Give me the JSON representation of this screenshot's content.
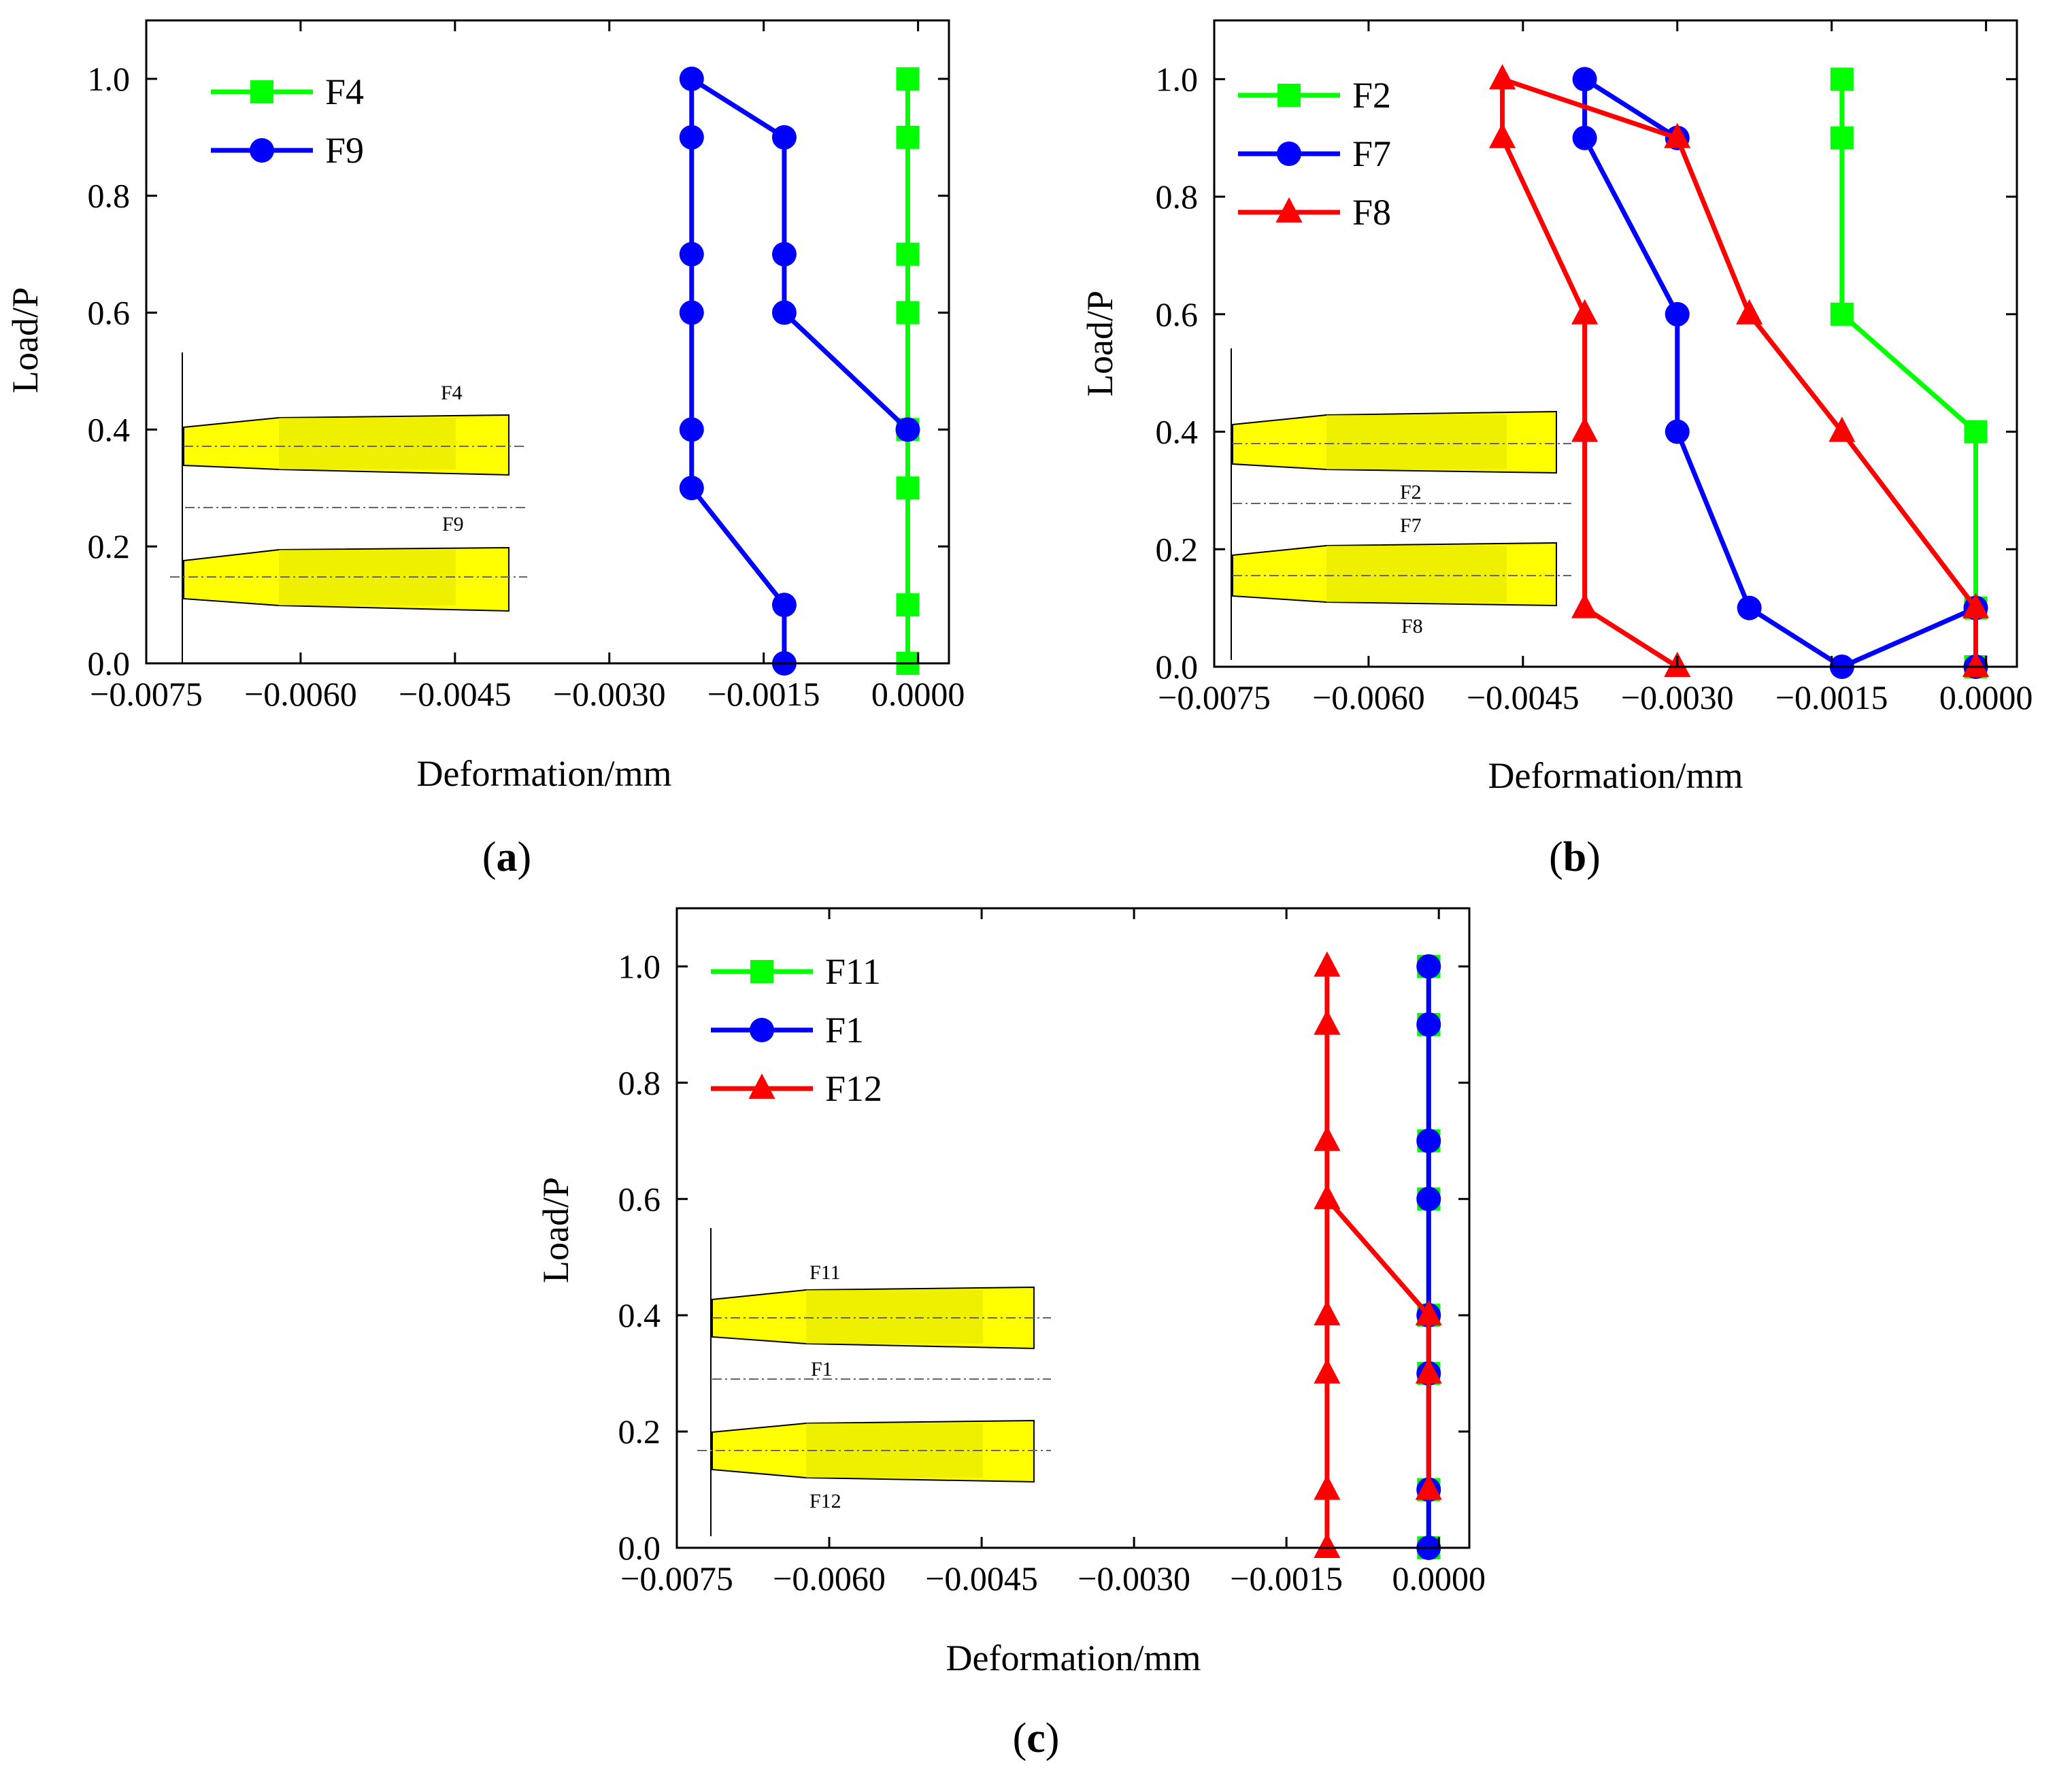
{
  "figure": {
    "background": "#ffffff"
  },
  "chart_data": [
    {
      "id": "a",
      "type": "line",
      "panel_label": "(a)",
      "panel_letter": "a",
      "xlabel": "Deformation/mm",
      "ylabel": "Load/P",
      "xlim": [
        -0.0075,
        0.0003
      ],
      "ylim": [
        0,
        1.1
      ],
      "xticks": [
        -0.0075,
        -0.006,
        -0.0045,
        -0.003,
        -0.0015,
        0.0
      ],
      "xtick_labels": [
        "−0.0075",
        "−0.0060",
        "−0.0045",
        "−0.0030",
        "−0.0015",
        "0.0000"
      ],
      "yticks": [
        0.0,
        0.2,
        0.4,
        0.6,
        0.8,
        1.0
      ],
      "ytick_labels": [
        "0.0",
        "0.2",
        "0.4",
        "0.6",
        "0.8",
        "1.0"
      ],
      "legend": "top-left",
      "series": [
        {
          "name": "F4",
          "color": "#00ff00",
          "marker": "square",
          "x": [
            -0.0001,
            -0.0001,
            -0.0001,
            -0.0001,
            -0.0001,
            -0.0001,
            -0.0001,
            -0.0001,
            -0.0001
          ],
          "y": [
            0.0,
            0.1,
            0.3,
            0.4,
            0.6,
            0.7,
            0.9,
            1.0,
            1.0
          ]
        },
        {
          "name": "F9",
          "color": "#0000ff",
          "marker": "circle",
          "x": [
            -0.0013,
            -0.0013,
            -0.0022,
            -0.0022,
            -0.0022,
            -0.0022,
            -0.0022,
            -0.0022,
            -0.0013,
            -0.0013,
            -0.0013,
            -0.0001
          ],
          "y": [
            0.0,
            0.1,
            0.3,
            0.4,
            0.6,
            0.7,
            0.9,
            1.0,
            0.9,
            0.7,
            0.6,
            0.4
          ]
        }
      ],
      "inset": {
        "labels": [
          "F4",
          "F9"
        ]
      }
    },
    {
      "id": "b",
      "type": "line",
      "panel_label": "(b)",
      "panel_letter": "b",
      "xlabel": "Deformation/mm",
      "ylabel": "Load/P",
      "xlim": [
        -0.0075,
        0.0003
      ],
      "ylim": [
        0,
        1.1
      ],
      "xticks": [
        -0.0075,
        -0.006,
        -0.0045,
        -0.003,
        -0.0015,
        0.0
      ],
      "xtick_labels": [
        "−0.0075",
        "−0.0060",
        "−0.0045",
        "−0.0030",
        "−0.0015",
        "0.0000"
      ],
      "yticks": [
        0.0,
        0.2,
        0.4,
        0.6,
        0.8,
        1.0
      ],
      "ytick_labels": [
        "0.0",
        "0.2",
        "0.4",
        "0.6",
        "0.8",
        "1.0"
      ],
      "legend": "top-left",
      "series": [
        {
          "name": "F2",
          "color": "#00ff00",
          "marker": "square",
          "x": [
            -0.0001,
            -0.0001,
            -0.0001,
            -0.0014,
            -0.0014,
            -0.0014
          ],
          "y": [
            0.0,
            0.1,
            0.4,
            0.6,
            0.9,
            1.0
          ]
        },
        {
          "name": "F7",
          "color": "#0000ff",
          "marker": "circle",
          "x": [
            -0.0001,
            -0.0001,
            -0.0014,
            -0.0023,
            -0.003,
            -0.003,
            -0.0039,
            -0.0039,
            -0.003
          ],
          "y": [
            0.0,
            0.1,
            0.0,
            0.1,
            0.4,
            0.6,
            0.9,
            1.0,
            0.9
          ]
        },
        {
          "name": "F8",
          "color": "#ff0000",
          "marker": "triangle",
          "x": [
            -0.003,
            -0.0039,
            -0.0039,
            -0.0039,
            -0.0047,
            -0.0047,
            -0.003,
            -0.0023,
            -0.0014,
            -0.0001,
            -0.0001
          ],
          "y": [
            0.0,
            0.1,
            0.4,
            0.6,
            0.9,
            1.0,
            0.9,
            0.6,
            0.4,
            0.1,
            0.0
          ]
        }
      ],
      "inset": {
        "labels": [
          "F2",
          "F7",
          "F8"
        ]
      }
    },
    {
      "id": "c",
      "type": "line",
      "panel_label": "(c)",
      "panel_letter": "c",
      "xlabel": "Deformation/mm",
      "ylabel": "Load/P",
      "xlim": [
        -0.0075,
        0.0003
      ],
      "ylim": [
        0,
        1.1
      ],
      "xticks": [
        -0.0075,
        -0.006,
        -0.0045,
        -0.003,
        -0.0015,
        0.0
      ],
      "xtick_labels": [
        "−0.0075",
        "−0.0060",
        "−0.0045",
        "−0.0030",
        "−0.0015",
        "0.0000"
      ],
      "yticks": [
        0.0,
        0.2,
        0.4,
        0.6,
        0.8,
        1.0
      ],
      "ytick_labels": [
        "0.0",
        "0.2",
        "0.4",
        "0.6",
        "0.8",
        "1.0"
      ],
      "legend": "top-left",
      "series": [
        {
          "name": "F11",
          "color": "#00ff00",
          "marker": "square",
          "x": [
            -0.0001,
            -0.0001,
            -0.0001,
            -0.0001,
            -0.0001,
            -0.0001,
            -0.0001,
            -0.0001,
            -0.0001
          ],
          "y": [
            0.0,
            0.1,
            0.3,
            0.4,
            0.6,
            0.7,
            0.9,
            1.0,
            1.0
          ]
        },
        {
          "name": "F1",
          "color": "#0000ff",
          "marker": "circle",
          "x": [
            -0.0001,
            -0.0001,
            -0.0001,
            -0.0001,
            -0.0001,
            -0.0001,
            -0.0001,
            -0.0001
          ],
          "y": [
            0.0,
            0.1,
            0.3,
            0.4,
            0.6,
            0.7,
            0.9,
            1.0
          ]
        },
        {
          "name": "F12",
          "color": "#ff0000",
          "marker": "triangle",
          "x": [
            -0.0001,
            -0.0001,
            -0.0001,
            -0.0011,
            -0.0011,
            -0.0011,
            -0.0011,
            -0.0011,
            -0.0011,
            -0.0011,
            -0.0011
          ],
          "y": [
            0.1,
            0.3,
            0.4,
            0.6,
            0.7,
            0.9,
            1.0,
            0.4,
            0.3,
            0.1,
            0.0
          ]
        }
      ],
      "inset": {
        "labels": [
          "F11",
          "F1",
          "F12"
        ]
      }
    }
  ]
}
